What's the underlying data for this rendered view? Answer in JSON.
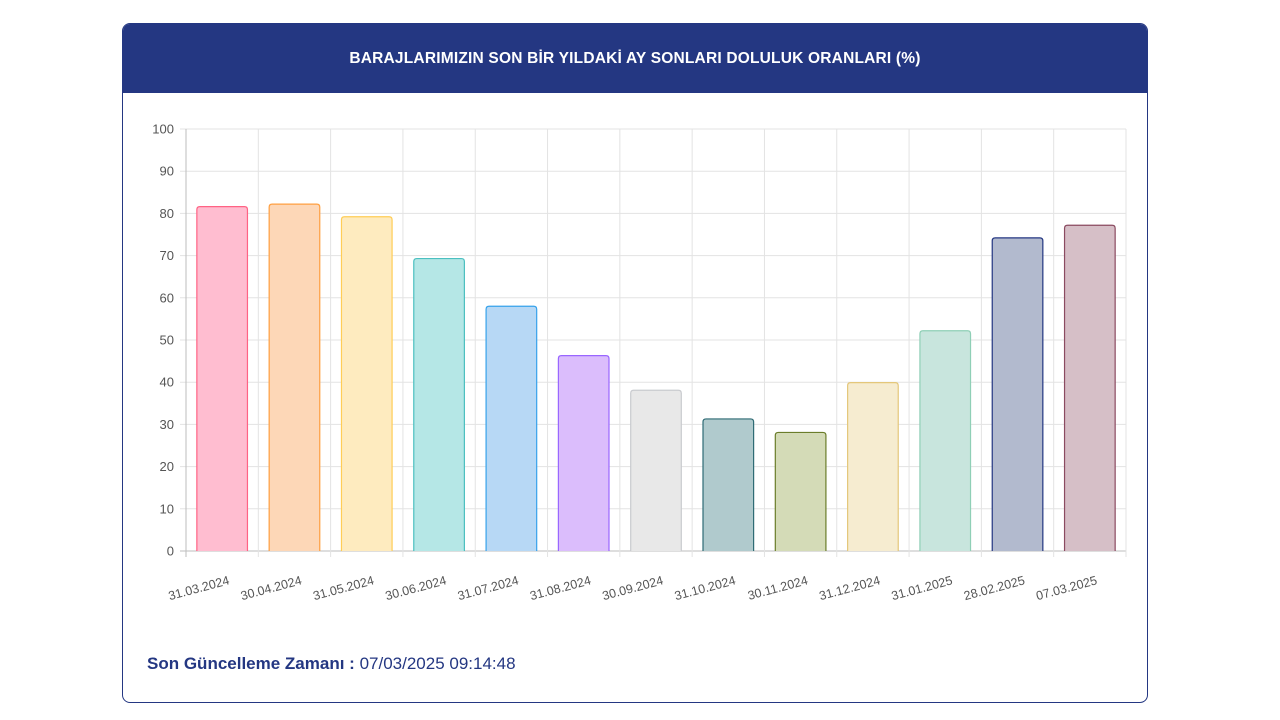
{
  "header": {
    "title": "BARAJLARIMIZIN SON BİR YILDAKİ AY SONLARI DOLULUK ORANLARI (%)"
  },
  "footer": {
    "label": "Son Güncelleme Zamanı :",
    "value": "07/03/2025 09:14:48"
  },
  "colors": {
    "header_bg": "#243782",
    "footer_text": "#243782",
    "grid": "#e3e3e3",
    "tick_text": "#555555"
  },
  "chart_data": {
    "type": "bar",
    "title": "BARAJLARIMIZIN SON BİR YILDAKİ AY SONLARI DOLULUK ORANLARI (%)",
    "xlabel": "",
    "ylabel": "",
    "ylim": [
      0,
      100
    ],
    "yticks": [
      0,
      10,
      20,
      30,
      40,
      50,
      60,
      70,
      80,
      90,
      100
    ],
    "grid": true,
    "legend": "none",
    "categories": [
      "31.03.2024",
      "30.04.2024",
      "31.05.2024",
      "30.06.2024",
      "31.07.2024",
      "31.08.2024",
      "30.09.2024",
      "31.10.2024",
      "30.11.2024",
      "31.12.2024",
      "31.01.2025",
      "28.02.2025",
      "07.03.2025"
    ],
    "values": [
      81.6,
      82.2,
      79.2,
      69.3,
      58.0,
      46.3,
      38.1,
      31.3,
      28.1,
      39.9,
      52.2,
      74.2,
      77.2
    ],
    "bar_fills": [
      "#ffbdd0",
      "#fdd7b7",
      "#feebbf",
      "#b5e7e6",
      "#b7d8f5",
      "#dbbdfc",
      "#e8e8e8",
      "#b0cacd",
      "#d4dbb7",
      "#f6ecd0",
      "#c8e5dd",
      "#b2bace",
      "#d6bfc7"
    ],
    "bar_strokes": [
      "#ff6384",
      "#ff9f40",
      "#ffcd56",
      "#4bc0c0",
      "#36a2eb",
      "#9966ff",
      "#c9cbcf",
      "#2e6b74",
      "#6b7d2a",
      "#e4c77a",
      "#8fcfb6",
      "#243782",
      "#8a4a60"
    ]
  }
}
